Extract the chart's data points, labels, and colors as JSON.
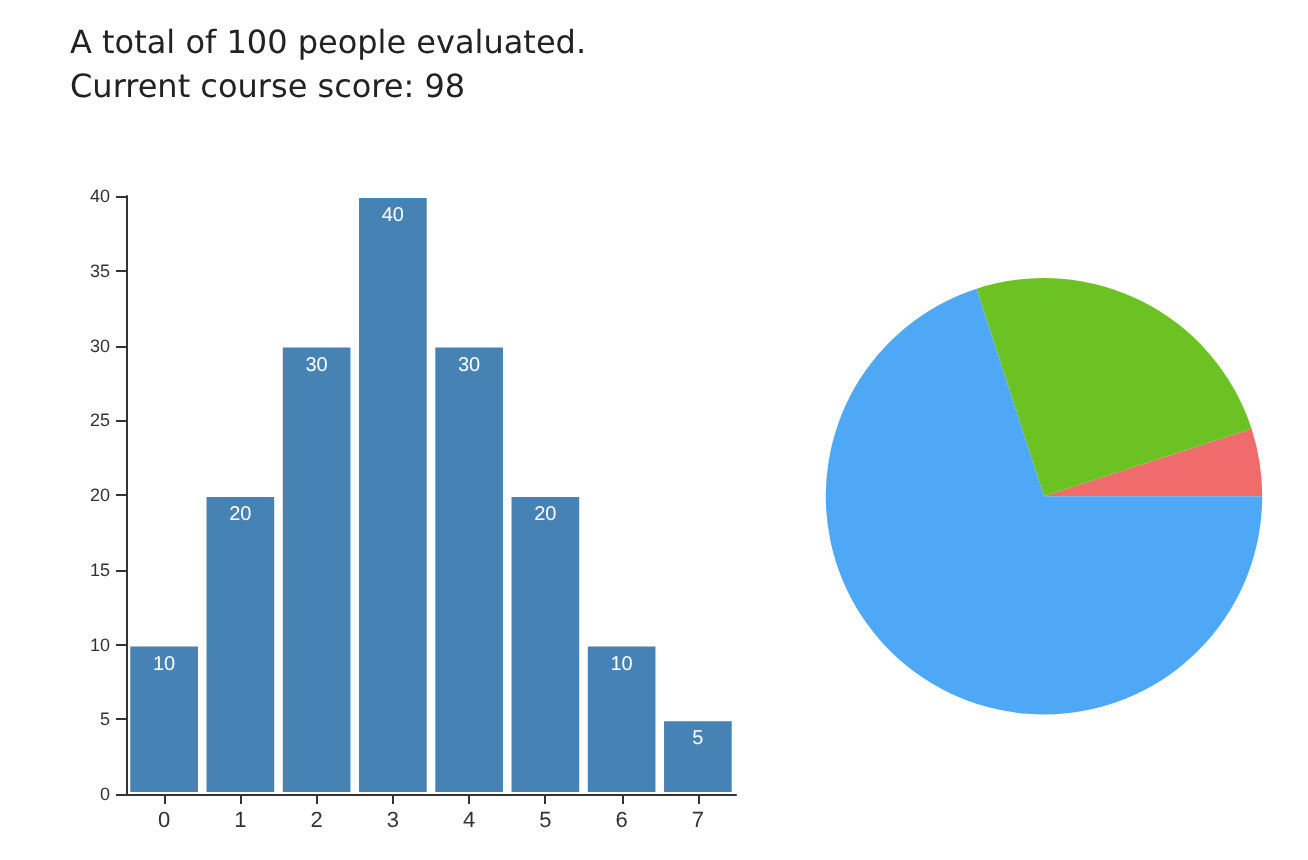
{
  "chart_data": [
    {
      "type": "bar",
      "title": "A total of 100 people evaluated.",
      "subtitle": "Current course score: 98",
      "categories": [
        "0",
        "1",
        "2",
        "3",
        "4",
        "5",
        "6",
        "7"
      ],
      "values": [
        10,
        20,
        30,
        40,
        30,
        20,
        10,
        5
      ],
      "color": "#4682b4",
      "ylim": [
        0,
        40
      ],
      "yticks": [
        0,
        5,
        10,
        15,
        20,
        25,
        30,
        35,
        40
      ],
      "grid": false,
      "data_labels": true
    },
    {
      "type": "pie",
      "categories": [
        null,
        null,
        null
      ],
      "values": [
        5,
        25,
        70
      ],
      "colors": [
        "#f06b6b",
        "#6cc223",
        "#4fa8f5"
      ]
    }
  ]
}
